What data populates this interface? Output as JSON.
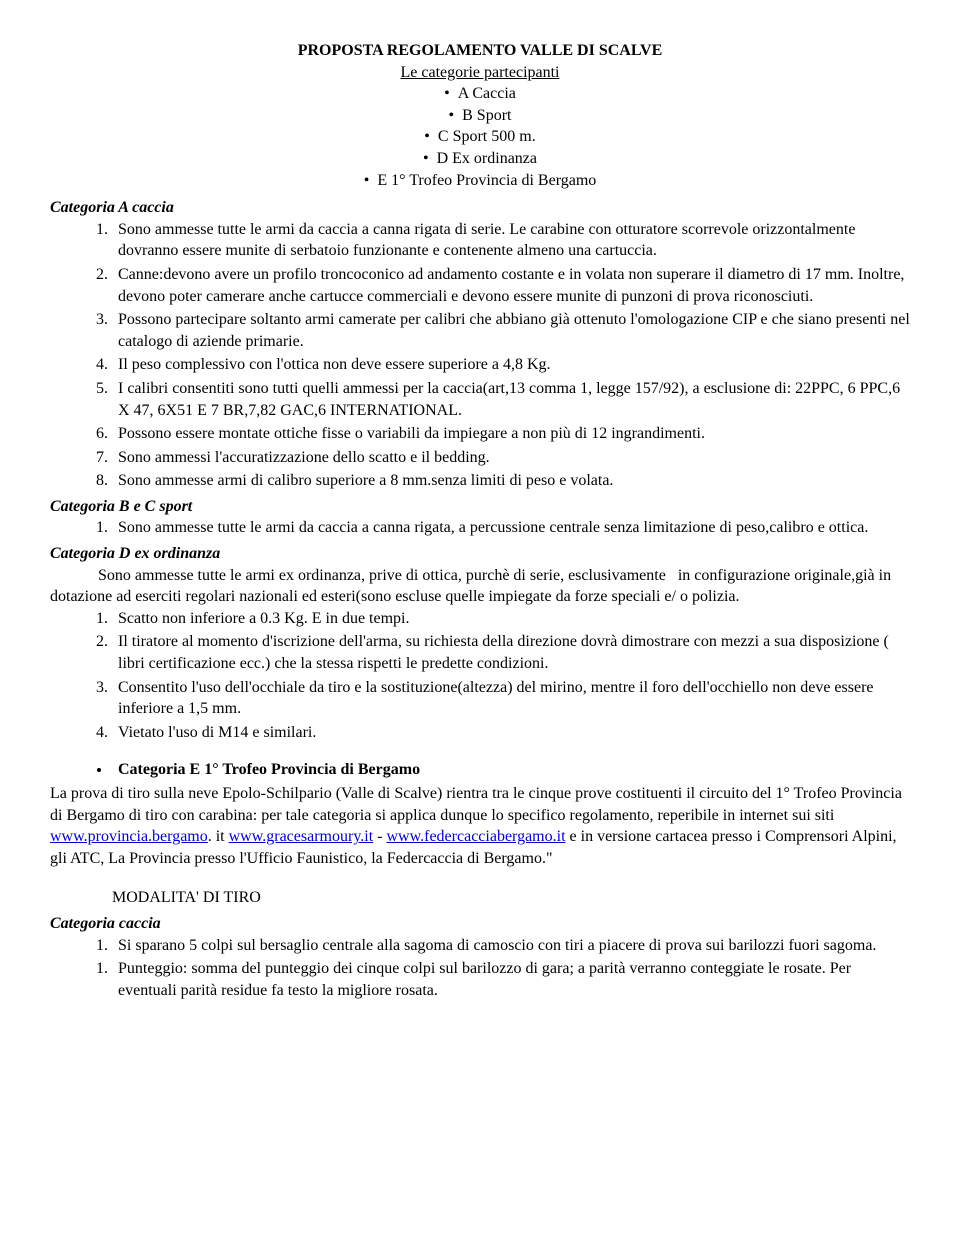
{
  "title": {
    "main": "PROPOSTA  REGOLAMENTO VALLE DI SCALVE",
    "sub": "Le categorie partecipanti",
    "bullets": [
      "A Caccia",
      "B Sport",
      "C Sport 500 m.",
      "D Ex ordinanza",
      "E  1° Trofeo Provincia di Bergamo"
    ]
  },
  "catA": {
    "header": "Categoria A caccia",
    "items": [
      "Sono ammesse tutte le armi da caccia a canna rigata di serie. Le carabine con otturatore scorrevole orizzontalmente dovranno essere munite di serbatoio funzionante e contenente almeno una cartuccia.",
      "Canne:devono avere un profilo troncoconico ad andamento costante e in volata non superare il diametro di 17 mm. Inoltre, devono poter camerare anche cartucce commerciali e devono essere munite di punzoni di prova riconosciuti.",
      "Possono partecipare soltanto armi camerate per calibri che abbiano già ottenuto l'omologazione CIP e che siano presenti nel catalogo di aziende primarie.",
      "Il peso complessivo con l'ottica non deve essere superiore a 4,8 Kg.",
      "I calibri consentiti sono tutti quelli ammessi per la caccia(art,13 comma 1, legge 157/92), a esclusione di: 22PPC, 6 PPC,6 X 47, 6X51 E 7 BR,7,82 GAC,6 INTERNATIONAL.",
      "Possono essere montate ottiche fisse o variabili da impiegare a non più di 12 ingrandimenti.",
      "Sono ammessi l'accuratizzazione dello scatto e il bedding.",
      "Sono ammesse armi di calibro superiore a 8 mm.senza limiti di peso e volata."
    ]
  },
  "catBC": {
    "header": "Categoria B e C sport",
    "items": [
      "Sono ammesse tutte le armi da caccia a canna rigata, a percussione centrale senza limitazione di peso,calibro e ottica."
    ]
  },
  "catD": {
    "header": "Categoria D ex ordinanza",
    "intro": "            Sono ammesse tutte le armi ex ordinanza, prive di ottica, purchè di serie, esclusivamente   in configurazione originale,già in dotazione ad eserciti regolari nazionali ed esteri(sono escluse quelle impiegate da forze speciali e/ o polizia.",
    "items": [
      "Scatto non inferiore a 0.3 Kg. E in due tempi.",
      "Il tiratore al momento d'iscrizione dell'arma, su richiesta della direzione dovrà dimostrare con mezzi a sua disposizione ( libri certificazione ecc.) che la stessa rispetti le predette condizioni.",
      "Consentito l'uso dell'occhiale da tiro e la sostituzione(altezza) del mirino, mentre il foro dell'occhiello non deve essere inferiore a 1,5 mm.",
      "Vietato l'uso di M14 e similari."
    ]
  },
  "catE": {
    "bullet": "Categoria E 1° Trofeo Provincia di Bergamo",
    "p1a": " La prova di tiro sulla neve Epolo-Schilpario (Valle di Scalve) rientra tra le cinque prove costituenti il circuito del 1° Trofeo Provincia di Bergamo di tiro con carabina: per tale categoria si applica dunque lo specifico regolamento, reperibile in internet sui siti ",
    "link1": "www.provincia.bergamo",
    "p1b": ". it ",
    "link2": "www.gracesarmoury.it",
    "p1c": " - ",
    "link3": "www.federcacciabergamo.it",
    "p1d": " e in versione cartacea presso i Comprensori Alpini, gli ATC, La Provincia presso l'Ufficio Faunistico, la Federcaccia di Bergamo.\""
  },
  "mod": {
    "header": "MODALITA' DI TIRO",
    "sub": "Categoria caccia",
    "items": [
      "Si sparano 5 colpi sul bersaglio centrale alla sagoma di camoscio con tiri a piacere di prova sui barilozzi fuori sagoma.",
      "Punteggio:  somma del punteggio dei cinque colpi sul barilozzo di gara; a parità verranno conteggiate le rosate. Per eventuali parità residue fa testo la migliore rosata."
    ]
  }
}
